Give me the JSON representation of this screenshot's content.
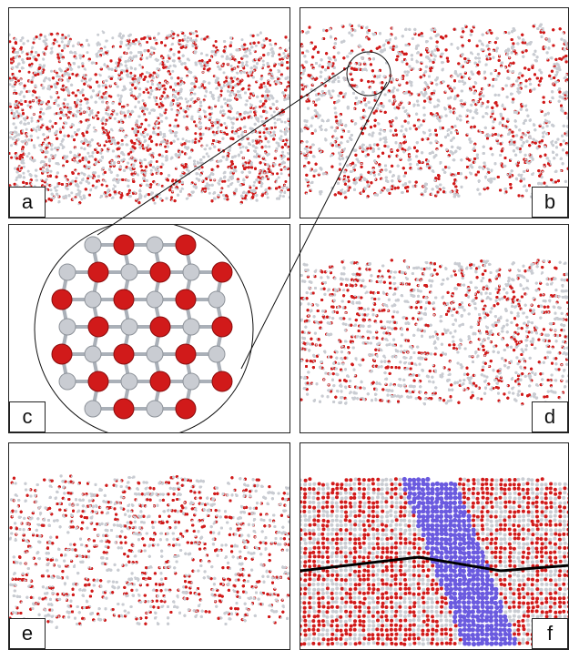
{
  "panels": [
    {
      "id": "a",
      "label": "a",
      "type": "disordered"
    },
    {
      "id": "b",
      "label": "b",
      "type": "nucleus"
    },
    {
      "id": "c",
      "label": "c",
      "type": "cluster-zoom"
    },
    {
      "id": "d",
      "label": "d",
      "type": "partial-crystal"
    },
    {
      "id": "e",
      "label": "e",
      "type": "crystal"
    },
    {
      "id": "f",
      "label": "f",
      "type": "grain-boundary"
    }
  ],
  "colors": {
    "oxygen": "#d11a1a",
    "hydrogen": "#c9ccd2",
    "highlight": "#6a5adf",
    "boundary_line": "#000000",
    "frame": "#222222"
  }
}
